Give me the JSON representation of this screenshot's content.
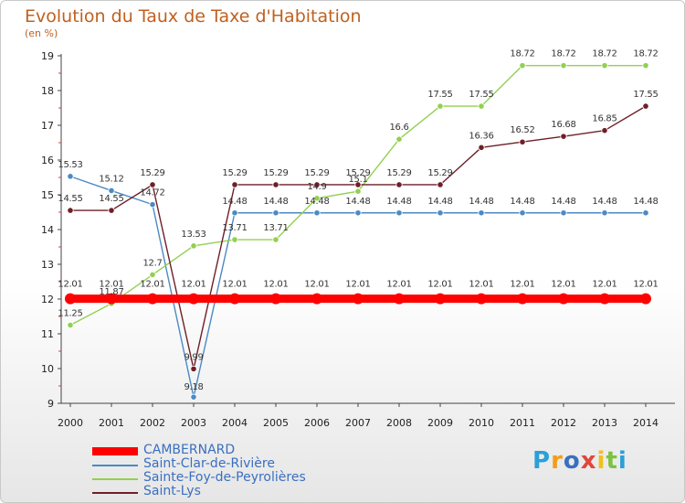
{
  "header": {
    "title": "Evolution du Taux de Taxe d'Habitation",
    "subtitle": "(en %)"
  },
  "logo": {
    "text": "Proxiti",
    "colors": [
      "#2aa0d8",
      "#f29d1a",
      "#3a6fc0",
      "#e0473a",
      "#f2c01a",
      "#7dc242",
      "#2aa0d8"
    ]
  },
  "chart_data": {
    "type": "line",
    "title": "Evolution du Taux de Taxe d'Habitation",
    "ylabel": "(en %)",
    "xlabel": "",
    "ylim": [
      9,
      19
    ],
    "yticks": [
      9,
      10,
      11,
      12,
      13,
      14,
      15,
      16,
      17,
      18,
      19
    ],
    "x": [
      "2000",
      "2001",
      "2002",
      "2003",
      "2004",
      "2005",
      "2006",
      "2007",
      "2008",
      "2009",
      "2010",
      "2011",
      "2012",
      "2013",
      "2014"
    ],
    "grid": false,
    "legend_position": "bottom-left",
    "series": [
      {
        "name": "CAMBERNARD",
        "color": "#ff0000",
        "thick": true,
        "values": [
          12.01,
          12.01,
          12.01,
          12.01,
          12.01,
          12.01,
          12.01,
          12.01,
          12.01,
          12.01,
          12.01,
          12.01,
          12.01,
          12.01,
          12.01
        ],
        "labels": [
          "12.01",
          "12.01",
          "12.01",
          "12.01",
          "12.01",
          "12.01",
          "12.01",
          "12.01",
          "12.01",
          "12.01",
          "12.01",
          "12.01",
          "12.01",
          "12.01",
          "12.01"
        ]
      },
      {
        "name": "Saint-Clar-de-Rivière",
        "color": "#4b8ac4",
        "thick": false,
        "values": [
          15.53,
          15.12,
          14.72,
          9.18,
          14.48,
          14.48,
          14.48,
          14.48,
          14.48,
          14.48,
          14.48,
          14.48,
          14.48,
          14.48,
          14.48
        ],
        "labels": [
          "15.53",
          "15.12",
          "14.72",
          "9.18",
          "14.48",
          "14.48",
          "14.48",
          "14.48",
          "14.48",
          "14.48",
          "14.48",
          "14.48",
          "14.48",
          "14.48",
          "14.48"
        ]
      },
      {
        "name": "Sainte-Foy-de-Peyrolières",
        "color": "#92d050",
        "thick": false,
        "values": [
          11.25,
          11.87,
          12.7,
          13.53,
          13.71,
          13.71,
          14.9,
          15.1,
          16.6,
          17.55,
          17.55,
          18.72,
          18.72,
          18.72,
          18.72
        ],
        "labels": [
          "11.25",
          "11.87",
          "12.7",
          "13.53",
          "13.71",
          "13.71",
          "14.9",
          "15.1",
          "16.6",
          "17.55",
          "17.55",
          "18.72",
          "18.72",
          "18.72",
          "18.72"
        ]
      },
      {
        "name": "Saint-Lys",
        "color": "#6e1f28",
        "thick": false,
        "values": [
          14.55,
          14.55,
          15.29,
          9.99,
          15.29,
          15.29,
          15.29,
          15.29,
          15.29,
          15.29,
          16.36,
          16.52,
          16.68,
          16.85,
          17.55
        ],
        "labels": [
          "14.55",
          "14.55",
          "15.29",
          "9.99",
          "15.29",
          "15.29",
          "15.29",
          "15.29",
          "15.29",
          "15.29",
          "16.36",
          "16.52",
          "16.68",
          "16.85",
          "17.55"
        ]
      }
    ]
  }
}
